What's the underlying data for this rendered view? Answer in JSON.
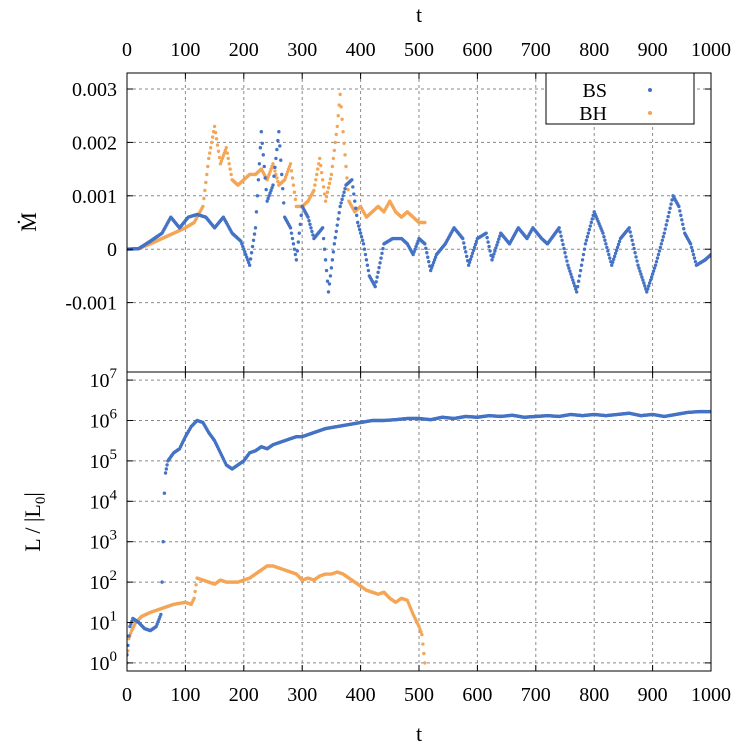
{
  "chart_data": [
    {
      "type": "scatter",
      "panel": "top",
      "xlabel": "t",
      "ylabel": "Ṁ",
      "xlim": [
        0,
        1000
      ],
      "ylim": [
        -0.0023,
        0.0033
      ],
      "x_ticks": [
        "0",
        "100",
        "200",
        "300",
        "400",
        "500",
        "600",
        "700",
        "800",
        "900",
        "1000"
      ],
      "y_ticks": [
        {
          "value": 0.003,
          "label": "0.003"
        },
        {
          "value": 0.002,
          "label": "0.002"
        },
        {
          "value": 0.001,
          "label": "0.001"
        },
        {
          "value": 0,
          "label": "0"
        },
        {
          "value": -0.001,
          "label": "-0.001"
        }
      ],
      "grid": true,
      "legend": "top-right",
      "series": [
        {
          "name": "BS",
          "color": "#4472c4",
          "points": [
            [
              0,
              0
            ],
            [
              20,
              1e-05
            ],
            [
              40,
              0.00015
            ],
            [
              60,
              0.0003
            ],
            [
              75,
              0.0006
            ],
            [
              90,
              0.0004
            ],
            [
              105,
              0.0006
            ],
            [
              120,
              0.00065
            ],
            [
              135,
              0.0006
            ],
            [
              150,
              0.0004
            ],
            [
              165,
              0.0006
            ],
            [
              180,
              0.0003
            ],
            [
              195,
              0.00015
            ],
            [
              210,
              -0.0003
            ],
            [
              220,
              0.0004
            ],
            [
              230,
              0.0022
            ],
            [
              240,
              0.0009
            ],
            [
              250,
              0.0012
            ],
            [
              260,
              0.0022
            ],
            [
              270,
              0.0006
            ],
            [
              280,
              0.0004
            ],
            [
              290,
              -0.0002
            ],
            [
              300,
              0.0008
            ],
            [
              310,
              0.0006
            ],
            [
              320,
              0.0002
            ],
            [
              335,
              0.0004
            ],
            [
              345,
              -0.0008
            ],
            [
              355,
              0.0001
            ],
            [
              365,
              0.0008
            ],
            [
              375,
              0.0012
            ],
            [
              385,
              0.0013
            ],
            [
              395,
              0.0005
            ],
            [
              405,
              0.0001
            ],
            [
              415,
              -0.0005
            ],
            [
              425,
              -0.0007
            ],
            [
              440,
              0.0001
            ],
            [
              455,
              0.0002
            ],
            [
              470,
              0.0002
            ],
            [
              480,
              0.0001
            ],
            [
              490,
              -0.0001
            ],
            [
              500,
              0.0002
            ],
            [
              510,
              0.0001
            ],
            [
              520,
              -0.0004
            ],
            [
              530,
              -0.0001
            ],
            [
              545,
              0.0001
            ],
            [
              560,
              0.0004
            ],
            [
              575,
              0.0002
            ],
            [
              585,
              -0.0003
            ],
            [
              600,
              0.0002
            ],
            [
              615,
              0.0003
            ],
            [
              625,
              -0.0002
            ],
            [
              640,
              0.0003
            ],
            [
              655,
              0.0001
            ],
            [
              670,
              0.0004
            ],
            [
              685,
              0.0002
            ],
            [
              695,
              0.0004
            ],
            [
              710,
              0.0002
            ],
            [
              720,
              0.0001
            ],
            [
              740,
              0.0004
            ],
            [
              755,
              -0.0003
            ],
            [
              770,
              -0.0008
            ],
            [
              785,
              0.0001
            ],
            [
              800,
              0.0007
            ],
            [
              815,
              0.0003
            ],
            [
              830,
              -0.0003
            ],
            [
              845,
              0.0002
            ],
            [
              860,
              0.0004
            ],
            [
              875,
              -0.0003
            ],
            [
              890,
              -0.0008
            ],
            [
              905,
              -0.0003
            ],
            [
              920,
              0.0003
            ],
            [
              935,
              0.001
            ],
            [
              945,
              0.0008
            ],
            [
              955,
              0.0003
            ],
            [
              965,
              0.0001
            ],
            [
              975,
              -0.0003
            ],
            [
              990,
              -0.0002
            ],
            [
              1000,
              -0.0001
            ]
          ]
        },
        {
          "name": "BH",
          "color": "#f4a556",
          "points": [
            [
              0,
              0
            ],
            [
              20,
              1e-05
            ],
            [
              40,
              0.0001
            ],
            [
              60,
              0.0002
            ],
            [
              80,
              0.0003
            ],
            [
              100,
              0.0004
            ],
            [
              115,
              0.0005
            ],
            [
              130,
              0.0008
            ],
            [
              140,
              0.0017
            ],
            [
              150,
              0.0023
            ],
            [
              160,
              0.0016
            ],
            [
              170,
              0.0019
            ],
            [
              180,
              0.0013
            ],
            [
              190,
              0.0012
            ],
            [
              200,
              0.0013
            ],
            [
              210,
              0.0014
            ],
            [
              220,
              0.0014
            ],
            [
              230,
              0.0015
            ],
            [
              240,
              0.0013
            ],
            [
              250,
              0.0016
            ],
            [
              260,
              0.0012
            ],
            [
              270,
              0.0013
            ],
            [
              280,
              0.0016
            ],
            [
              290,
              0.0008
            ],
            [
              300,
              0.0008
            ],
            [
              310,
              0.0009
            ],
            [
              320,
              0.0011
            ],
            [
              330,
              0.0017
            ],
            [
              340,
              0.0009
            ],
            [
              350,
              0.0014
            ],
            [
              360,
              0.0023
            ],
            [
              365,
              0.0029
            ],
            [
              370,
              0.0022
            ],
            [
              380,
              0.0009
            ],
            [
              390,
              0.0007
            ],
            [
              400,
              0.0008
            ],
            [
              410,
              0.0006
            ],
            [
              420,
              0.0007
            ],
            [
              430,
              0.0008
            ],
            [
              440,
              0.0007
            ],
            [
              450,
              0.0009
            ],
            [
              460,
              0.0007
            ],
            [
              470,
              0.0006
            ],
            [
              480,
              0.0007
            ],
            [
              490,
              0.0006
            ],
            [
              500,
              0.0005
            ],
            [
              510,
              0.0005
            ]
          ]
        }
      ]
    },
    {
      "type": "scatter",
      "panel": "bottom",
      "xlabel": "t",
      "ylabel": "L / |L",
      "ylabel_sub": "0",
      "ylabel_end": "|",
      "xlim": [
        0,
        1000
      ],
      "ylim": [
        -0.2,
        7.2
      ],
      "yscale": "log",
      "x_ticks": [
        "0",
        "100",
        "200",
        "300",
        "400",
        "500",
        "600",
        "700",
        "800",
        "900",
        "1000"
      ],
      "y_ticks": [
        {
          "value": 0,
          "base": "10",
          "exp": "0"
        },
        {
          "value": 1,
          "base": "10",
          "exp": "1"
        },
        {
          "value": 2,
          "base": "10",
          "exp": "2"
        },
        {
          "value": 3,
          "base": "10",
          "exp": "3"
        },
        {
          "value": 4,
          "base": "10",
          "exp": "4"
        },
        {
          "value": 5,
          "base": "10",
          "exp": "5"
        },
        {
          "value": 6,
          "base": "10",
          "exp": "6"
        },
        {
          "value": 7,
          "base": "10",
          "exp": "7"
        }
      ],
      "grid": true,
      "series": [
        {
          "name": "BS",
          "color": "#4472c4",
          "log10_points": [
            [
              0,
              0.2
            ],
            [
              5,
              0.9
            ],
            [
              10,
              1.1
            ],
            [
              20,
              1.0
            ],
            [
              30,
              0.85
            ],
            [
              40,
              0.8
            ],
            [
              50,
              0.9
            ],
            [
              58,
              1.2
            ],
            [
              60,
              2.0
            ],
            [
              62,
              3.0
            ],
            [
              64,
              4.2
            ],
            [
              66,
              4.7
            ],
            [
              70,
              5.0
            ],
            [
              80,
              5.2
            ],
            [
              90,
              5.3
            ],
            [
              100,
              5.6
            ],
            [
              110,
              5.85
            ],
            [
              120,
              6.0
            ],
            [
              130,
              5.95
            ],
            [
              140,
              5.7
            ],
            [
              150,
              5.5
            ],
            [
              160,
              5.2
            ],
            [
              170,
              4.9
            ],
            [
              180,
              4.8
            ],
            [
              190,
              4.9
            ],
            [
              200,
              5.0
            ],
            [
              210,
              5.2
            ],
            [
              220,
              5.25
            ],
            [
              230,
              5.35
            ],
            [
              240,
              5.3
            ],
            [
              250,
              5.4
            ],
            [
              260,
              5.45
            ],
            [
              270,
              5.5
            ],
            [
              280,
              5.55
            ],
            [
              290,
              5.6
            ],
            [
              300,
              5.6
            ],
            [
              320,
              5.7
            ],
            [
              340,
              5.8
            ],
            [
              360,
              5.85
            ],
            [
              380,
              5.9
            ],
            [
              400,
              5.95
            ],
            [
              420,
              6.0
            ],
            [
              440,
              6.0
            ],
            [
              460,
              6.02
            ],
            [
              480,
              6.05
            ],
            [
              500,
              6.05
            ],
            [
              520,
              6.02
            ],
            [
              540,
              6.08
            ],
            [
              560,
              6.05
            ],
            [
              580,
              6.1
            ],
            [
              600,
              6.08
            ],
            [
              620,
              6.12
            ],
            [
              640,
              6.1
            ],
            [
              660,
              6.13
            ],
            [
              680,
              6.08
            ],
            [
              700,
              6.1
            ],
            [
              720,
              6.12
            ],
            [
              740,
              6.1
            ],
            [
              760,
              6.15
            ],
            [
              780,
              6.12
            ],
            [
              800,
              6.15
            ],
            [
              820,
              6.12
            ],
            [
              840,
              6.15
            ],
            [
              860,
              6.18
            ],
            [
              880,
              6.12
            ],
            [
              900,
              6.15
            ],
            [
              920,
              6.1
            ],
            [
              940,
              6.15
            ],
            [
              960,
              6.2
            ],
            [
              980,
              6.22
            ],
            [
              1000,
              6.22
            ]
          ]
        },
        {
          "name": "BH",
          "color": "#f4a556",
          "log10_points": [
            [
              0,
              0.0
            ],
            [
              3,
              0.6
            ],
            [
              8,
              0.8
            ],
            [
              15,
              1.0
            ],
            [
              25,
              1.15
            ],
            [
              40,
              1.25
            ],
            [
              60,
              1.35
            ],
            [
              80,
              1.45
            ],
            [
              100,
              1.5
            ],
            [
              110,
              1.45
            ],
            [
              115,
              1.6
            ],
            [
              120,
              2.1
            ],
            [
              130,
              2.05
            ],
            [
              140,
              2.0
            ],
            [
              150,
              1.95
            ],
            [
              160,
              2.05
            ],
            [
              170,
              2.0
            ],
            [
              180,
              2.0
            ],
            [
              190,
              2.0
            ],
            [
              200,
              2.05
            ],
            [
              210,
              2.1
            ],
            [
              220,
              2.2
            ],
            [
              230,
              2.3
            ],
            [
              240,
              2.4
            ],
            [
              250,
              2.4
            ],
            [
              260,
              2.35
            ],
            [
              270,
              2.3
            ],
            [
              280,
              2.25
            ],
            [
              290,
              2.2
            ],
            [
              300,
              2.05
            ],
            [
              310,
              2.1
            ],
            [
              320,
              2.05
            ],
            [
              330,
              2.15
            ],
            [
              340,
              2.2
            ],
            [
              350,
              2.2
            ],
            [
              360,
              2.25
            ],
            [
              370,
              2.2
            ],
            [
              380,
              2.1
            ],
            [
              390,
              2.0
            ],
            [
              400,
              1.9
            ],
            [
              410,
              1.8
            ],
            [
              420,
              1.75
            ],
            [
              430,
              1.7
            ],
            [
              440,
              1.75
            ],
            [
              450,
              1.6
            ],
            [
              460,
              1.5
            ],
            [
              470,
              1.6
            ],
            [
              480,
              1.55
            ],
            [
              490,
              1.2
            ],
            [
              500,
              0.9
            ],
            [
              505,
              0.7
            ],
            [
              510,
              0.0
            ]
          ]
        }
      ]
    }
  ]
}
